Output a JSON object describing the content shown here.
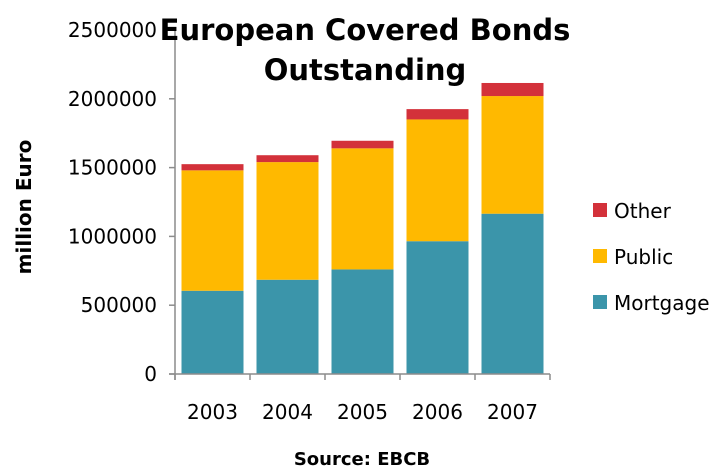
{
  "chart_data": {
    "type": "bar",
    "stacked": true,
    "title": "European Covered Bonds Outstanding",
    "title_lines": [
      "European Covered Bonds",
      "Outstanding"
    ],
    "ylabel": "million Euro",
    "xlabel": "",
    "source": "Source: EBCB",
    "categories": [
      "2003",
      "2004",
      "2005",
      "2006",
      "2007"
    ],
    "ylim": [
      0,
      2500000
    ],
    "yticks": [
      0,
      500000,
      1000000,
      1500000,
      2000000,
      2500000
    ],
    "series": [
      {
        "name": "Mortgage",
        "color": "#3b95aa",
        "values": [
          605000,
          685000,
          760000,
          965000,
          1165000
        ]
      },
      {
        "name": "Public",
        "color": "#ffb900",
        "values": [
          875000,
          855000,
          880000,
          885000,
          855000
        ]
      },
      {
        "name": "Other",
        "color": "#d3313a",
        "values": [
          45000,
          50000,
          55000,
          75000,
          95000
        ]
      }
    ],
    "legend_order": [
      "Other",
      "Public",
      "Mortgage"
    ],
    "legend_position": "right",
    "grid": false
  }
}
